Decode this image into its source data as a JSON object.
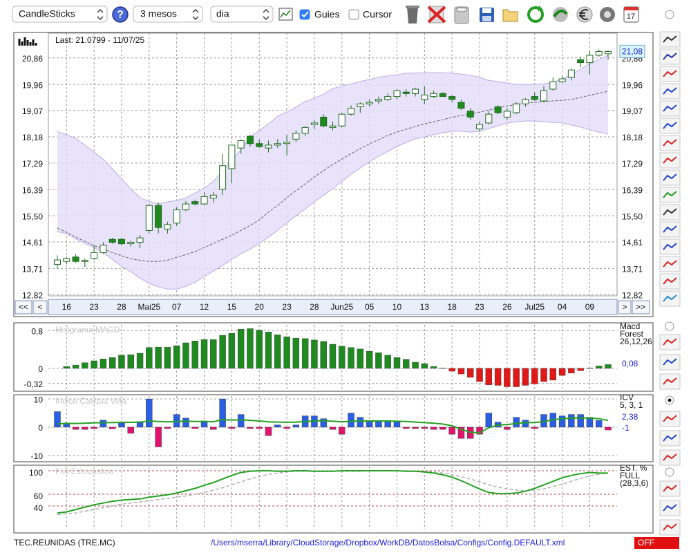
{
  "toolbar": {
    "chart_type": "CandleSticks",
    "help": "?",
    "period": "3 mesos",
    "interval": "dia",
    "guides": {
      "label": "Guies",
      "checked": true
    },
    "cursor": {
      "label": "Cursor",
      "checked": false
    },
    "calendar_icon": "17"
  },
  "navigation": {
    "first": "<<",
    "prev": "<",
    "next": ">",
    "last": ">>"
  },
  "chart_data": [
    {
      "type": "candlestick",
      "annotation": "Last: 21.0799 - 11/07/25",
      "last_price": 21.08,
      "last_price_label": "21,08",
      "categories": [
        null,
        "16",
        null,
        null,
        "23",
        null,
        null,
        "28",
        null,
        null,
        "Mai25",
        null,
        null,
        "07",
        null,
        null,
        "12",
        null,
        null,
        "15",
        null,
        null,
        "20",
        null,
        null,
        "23",
        null,
        null,
        "28",
        null,
        null,
        "Jun25",
        null,
        null,
        "05",
        null,
        null,
        "10",
        null,
        null,
        "13",
        null,
        null,
        "18",
        null,
        null,
        "23",
        null,
        null,
        "26",
        null,
        null,
        "Jul25",
        null,
        null,
        "04",
        null,
        null,
        "09",
        null,
        null
      ],
      "open": [
        13.85,
        13.95,
        14.1,
        13.95,
        14.05,
        14.25,
        14.7,
        14.7,
        14.55,
        14.6,
        15.0,
        15.85,
        15.05,
        15.25,
        15.7,
        15.98,
        15.9,
        16.1,
        16.4,
        17.1,
        17.8,
        18.2,
        17.95,
        17.8,
        17.9,
        17.95,
        18.1,
        18.3,
        18.6,
        18.85,
        18.5,
        18.55,
        18.95,
        19.2,
        19.3,
        19.4,
        19.45,
        19.55,
        19.7,
        19.65,
        19.45,
        19.55,
        19.65,
        19.55,
        19.35,
        19.05,
        18.45,
        18.65,
        19.2,
        18.85,
        19.0,
        19.3,
        19.55,
        19.4,
        19.8,
        20.05,
        20.2,
        20.8,
        20.7,
        20.95,
        21.0
      ],
      "high": [
        14.15,
        14.1,
        14.2,
        14.05,
        14.5,
        14.6,
        14.75,
        14.75,
        14.65,
        14.85,
        15.9,
        15.95,
        15.3,
        15.8,
        16.0,
        16.05,
        16.3,
        16.3,
        17.6,
        17.9,
        18.1,
        18.25,
        18.1,
        18.05,
        18.1,
        18.25,
        18.4,
        18.55,
        18.75,
        18.95,
        18.7,
        19.0,
        19.25,
        19.35,
        19.45,
        19.55,
        19.65,
        19.8,
        19.8,
        19.85,
        19.9,
        19.75,
        19.7,
        19.6,
        19.45,
        19.15,
        18.7,
        19.05,
        19.25,
        19.15,
        19.35,
        19.5,
        19.7,
        19.9,
        20.2,
        20.25,
        20.5,
        20.9,
        21.1,
        21.15,
        21.12
      ],
      "low": [
        13.7,
        13.85,
        13.9,
        13.75,
        14.0,
        14.2,
        14.55,
        14.5,
        14.45,
        14.4,
        14.9,
        14.9,
        14.9,
        15.15,
        15.65,
        15.85,
        15.85,
        15.95,
        16.2,
        16.6,
        17.6,
        17.85,
        17.8,
        17.65,
        17.8,
        17.55,
        18.0,
        18.2,
        18.45,
        18.5,
        18.4,
        18.5,
        18.9,
        19.0,
        19.2,
        19.3,
        19.4,
        19.45,
        19.55,
        19.55,
        19.3,
        19.5,
        19.55,
        19.35,
        19.1,
        18.75,
        18.35,
        18.6,
        18.95,
        18.75,
        18.95,
        19.2,
        19.4,
        19.35,
        19.75,
        20.0,
        20.1,
        20.55,
        20.3,
        20.9,
        20.8
      ],
      "close": [
        14.0,
        14.05,
        13.95,
        13.98,
        14.25,
        14.5,
        14.6,
        14.55,
        14.6,
        14.75,
        15.85,
        15.1,
        15.2,
        15.7,
        15.9,
        15.9,
        16.15,
        16.2,
        17.2,
        17.9,
        18.05,
        17.95,
        17.85,
        17.9,
        17.95,
        18.0,
        18.3,
        18.5,
        18.65,
        18.55,
        18.55,
        18.95,
        19.15,
        19.3,
        19.35,
        19.45,
        19.55,
        19.75,
        19.65,
        19.8,
        19.6,
        19.65,
        19.55,
        19.45,
        19.15,
        18.85,
        18.6,
        18.95,
        19.0,
        19.05,
        19.3,
        19.45,
        19.45,
        19.75,
        20.05,
        20.15,
        20.45,
        20.7,
        20.95,
        21.08,
        21.08
      ],
      "bands": {
        "upper": [
          18.36,
          18.25,
          18.13,
          17.9,
          17.66,
          17.42,
          17.09,
          16.76,
          16.41,
          16.11,
          15.99,
          15.9,
          15.97,
          16.02,
          16.11,
          16.27,
          16.44,
          16.67,
          17.02,
          17.38,
          17.75,
          18.18,
          18.39,
          18.62,
          18.88,
          19.02,
          19.19,
          19.38,
          19.49,
          19.63,
          19.82,
          19.91,
          19.98,
          20.06,
          20.13,
          20.2,
          20.25,
          20.29,
          20.34,
          20.34,
          20.36,
          20.36,
          20.36,
          20.34,
          20.31,
          20.27,
          20.2,
          20.1,
          20.06,
          20.01,
          19.96,
          19.96,
          19.96,
          19.98,
          20.03,
          20.15,
          20.29,
          20.48,
          20.67,
          20.81,
          20.95
        ],
        "lower": [
          14.96,
          14.89,
          14.72,
          14.56,
          14.42,
          14.25,
          14.02,
          13.78,
          13.6,
          13.38,
          13.2,
          13.08,
          13.01,
          13.01,
          13.1,
          13.24,
          13.43,
          13.62,
          13.81,
          14.02,
          14.21,
          14.37,
          14.56,
          14.77,
          15.0,
          15.26,
          15.5,
          15.73,
          15.97,
          16.2,
          16.41,
          16.67,
          16.91,
          17.12,
          17.33,
          17.52,
          17.68,
          17.85,
          17.99,
          18.11,
          18.18,
          18.25,
          18.32,
          18.37,
          18.37,
          18.34,
          18.37,
          18.46,
          18.55,
          18.65,
          18.69,
          18.72,
          18.72,
          18.69,
          18.67,
          18.65,
          18.58,
          18.51,
          18.42,
          18.34,
          18.27
        ]
      },
      "ma": [
        15.08,
        14.94,
        14.77,
        14.63,
        14.49,
        14.37,
        14.25,
        14.14,
        14.04,
        13.99,
        13.95,
        13.95,
        13.99,
        14.09,
        14.18,
        14.28,
        14.42,
        14.56,
        14.7,
        14.84,
        15.0,
        15.17,
        15.36,
        15.62,
        15.85,
        16.11,
        16.35,
        16.58,
        16.82,
        17.03,
        17.24,
        17.42,
        17.61,
        17.78,
        17.94,
        18.08,
        18.23,
        18.34,
        18.44,
        18.53,
        18.62,
        18.69,
        18.76,
        18.84,
        18.91,
        18.95,
        19.02,
        19.09,
        19.16,
        19.23,
        19.28,
        19.33,
        19.35,
        19.38,
        19.4,
        19.42,
        19.45,
        19.52,
        19.59,
        19.66,
        19.73
      ],
      "ylim": [
        12.78,
        21.7
      ],
      "yticks": [
        {
          "value": 12.82,
          "label": "12,82"
        },
        {
          "value": 13.71,
          "label": "13,71"
        },
        {
          "value": 14.61,
          "label": "14,61"
        },
        {
          "value": 15.5,
          "label": "15,50"
        },
        {
          "value": 16.39,
          "label": "16,39"
        },
        {
          "value": 17.29,
          "label": "17,29"
        },
        {
          "value": 18.18,
          "label": "18,18"
        },
        {
          "value": 19.07,
          "label": "19,07"
        },
        {
          "value": 19.96,
          "label": "19,96"
        },
        {
          "value": 20.86,
          "label": "20,86"
        }
      ],
      "grid": true,
      "up_color": "#ffffff",
      "down_color": "#1f8a1f",
      "band_color": "#e4def9",
      "ma_color": "#666666"
    },
    {
      "type": "histogram",
      "title": "Histgrama MACD",
      "legend": [
        "Macd",
        "Forest",
        "26,12,26"
      ],
      "last_label": "0,08",
      "values": [
        0,
        0.04,
        0.07,
        0.12,
        0.16,
        0.2,
        0.23,
        0.28,
        0.29,
        0.32,
        0.44,
        0.45,
        0.45,
        0.48,
        0.54,
        0.58,
        0.61,
        0.61,
        0.7,
        0.74,
        0.83,
        0.84,
        0.81,
        0.77,
        0.71,
        0.67,
        0.64,
        0.63,
        0.6,
        0.57,
        0.51,
        0.47,
        0.44,
        0.41,
        0.36,
        0.33,
        0.28,
        0.23,
        0.19,
        0.13,
        0.1,
        0.04,
        0.01,
        -0.06,
        -0.12,
        -0.19,
        -0.28,
        -0.35,
        -0.36,
        -0.39,
        -0.39,
        -0.36,
        -0.33,
        -0.28,
        -0.25,
        -0.15,
        -0.1,
        -0.05,
        0.01,
        0.05,
        0.08
      ],
      "ylim": [
        -0.47,
        0.92
      ],
      "yticks": [
        {
          "value": 0.8,
          "label": "0,8"
        },
        0,
        {
          "value": -0.32,
          "label": "-0,32"
        }
      ],
      "grid": true,
      "positive_color": "#1f8a1f",
      "negative_color": "#e01818"
    },
    {
      "type": "bar_line",
      "title": "Indice Calidad Vela",
      "legend": [
        "ICV",
        "5, 3, 1"
      ],
      "line_last_label": "2,38",
      "last_label": "-1",
      "values": [
        5.5,
        1.5,
        -0.8,
        -0.8,
        -0.5,
        2.5,
        -0.6,
        1.5,
        -2.2,
        2,
        10,
        -7,
        -0.5,
        4.5,
        3.2,
        -0.5,
        2.2,
        -0.8,
        10,
        -0.5,
        4.5,
        -0.5,
        -0.5,
        -3,
        0.8,
        -0.5,
        0.8,
        4,
        4,
        3,
        -0.8,
        -2.5,
        5,
        3.5,
        2.2,
        2.2,
        2,
        1.8,
        -0.5,
        -0.5,
        -0.5,
        -0.8,
        -0.8,
        -2.5,
        -4,
        -4,
        -2.5,
        5,
        1.8,
        -0.8,
        3.5,
        2.5,
        -0.5,
        4.5,
        5,
        4,
        4.5,
        4.5,
        3.5,
        2.38,
        -1
      ],
      "line": [
        1.2,
        1.3,
        1.3,
        1.4,
        1.5,
        1.6,
        1.6,
        1.7,
        1.7,
        1.8,
        2.2,
        2.0,
        1.9,
        2.0,
        2.1,
        2.0,
        2.0,
        1.9,
        2.7,
        2.5,
        2.6,
        2.4,
        2.2,
        1.9,
        1.8,
        1.7,
        1.8,
        2.0,
        2.2,
        2.3,
        2.1,
        1.9,
        2.1,
        2.2,
        2.2,
        2.2,
        2.2,
        2.1,
        2.0,
        1.8,
        1.6,
        1.4,
        1.1,
        0.5,
        -0.8,
        -1.8,
        -2.0,
        -0.2,
        0.8,
        0.9,
        1.3,
        1.6,
        1.6,
        2.0,
        2.6,
        3.0,
        3.2,
        3.3,
        3.2,
        3.0,
        2.38
      ],
      "ylim": [
        -12,
        11
      ],
      "yticks": [
        10,
        0,
        -10
      ],
      "grid": true,
      "positive_color": "#2b5ee0",
      "negative_color": "#e0146c",
      "line_color": "#23a023"
    },
    {
      "type": "line",
      "title": "Full Estocastico",
      "legend": [
        "EST. %",
        "FULL",
        "(28,3,6)"
      ],
      "series": [
        {
          "color": "#23a023",
          "values": [
            28,
            30,
            34,
            38,
            42,
            45,
            48,
            50,
            51,
            52,
            55,
            57,
            59,
            62,
            66,
            70,
            75,
            80,
            86,
            92,
            97,
            99,
            100,
            100,
            99,
            99,
            100,
            100,
            99,
            99,
            99,
            100,
            100,
            100,
            100,
            100,
            100,
            100,
            99,
            99,
            98,
            96,
            93,
            89,
            83,
            76,
            69,
            63,
            61,
            61,
            62,
            65,
            70,
            76,
            82,
            88,
            92,
            95,
            97,
            96,
            96
          ]
        },
        {
          "color": "#b0b0b0",
          "dashed": true,
          "values": [
            25,
            27,
            28,
            31,
            34,
            37,
            40,
            43,
            45,
            47,
            49,
            51,
            53,
            55,
            57,
            60,
            63,
            67,
            71,
            76,
            81,
            86,
            90,
            94,
            96,
            98,
            99,
            99,
            99,
            99,
            99,
            99,
            99,
            99,
            100,
            100,
            100,
            100,
            100,
            99,
            99,
            98,
            96,
            93,
            90,
            86,
            81,
            76,
            72,
            69,
            67,
            66,
            67,
            69,
            73,
            77,
            82,
            87,
            91,
            94,
            96
          ]
        }
      ],
      "ylim": [
        0,
        107
      ],
      "yticks": [
        100,
        60,
        40
      ],
      "grid": true,
      "grid_color": "#c04040"
    }
  ],
  "status": {
    "ticker": "TEC.REUNIDAS (TRE.MC)",
    "path": "/Users/mserra/Library/CloudStorage/Dropbox/WorkDB/DatosBolsa/Configs/Config.DEFAULT.xml",
    "state": "OFF"
  }
}
